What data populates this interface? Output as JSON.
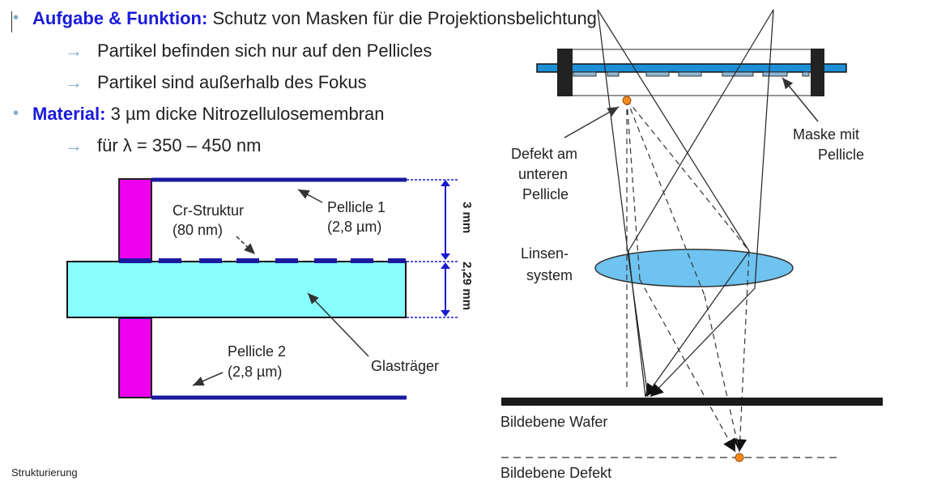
{
  "bullets": {
    "b1_key": "Aufgabe & Funktion:",
    "b1_text": "Schutz von Masken für die Projektionsbelichtung",
    "sub1": "Partikel befinden sich nur auf den Pellicles",
    "sub2": "Partikel sind außerhalb des Fokus",
    "b2_key": "Material:",
    "b2_text": "3 µm dicke Nitrozellulosemembran",
    "sub3": "für λ = 350 – 450 nm",
    "bullet_symbol": "•",
    "arrow_symbol": "→"
  },
  "left_diagram": {
    "cr_label_1": "Cr-Struktur",
    "cr_label_2": "(80 nm)",
    "pellicle1_1": "Pellicle 1",
    "pellicle1_2": "(2,8 µm)",
    "pellicle2_1": "Pellicle  2",
    "pellicle2_2": "(2,8 µm)",
    "glass": "Glasträger",
    "dim_top": "3 mm",
    "dim_bottom": "2,29 mm",
    "colors": {
      "frame": "#ee00ee",
      "glass": "#88ffff",
      "pellicle": "#1a1aa0",
      "dim": "#1a1acc"
    }
  },
  "right_diagram": {
    "defect_1": "Defekt am",
    "defect_2": "unteren",
    "defect_3": "Pellicle",
    "mask_1": "Maske mit",
    "mask_2": "Pellicle",
    "lens_1": "Linsen-",
    "lens_2": "system",
    "wafer": "Bildebene Wafer",
    "defect_plane": "Bildebene Defekt",
    "colors": {
      "mask": "#1e8fd6",
      "lens": "#6ec3f0",
      "defect": "#f08a20"
    }
  },
  "footer": "Strukturierung"
}
